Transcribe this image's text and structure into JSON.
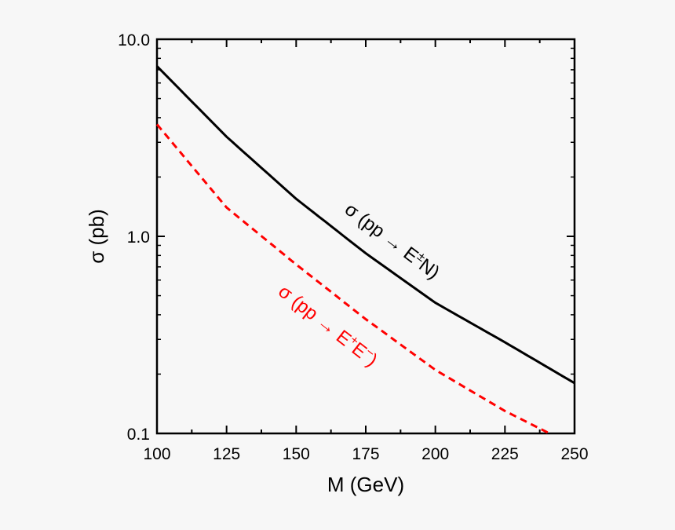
{
  "chart_data": {
    "type": "line",
    "xlabel": "M (GeV)",
    "ylabel": "σ (pb)",
    "xlim": [
      100,
      250
    ],
    "ylim": [
      0.1,
      10.0
    ],
    "yscale": "log",
    "grid": false,
    "x_ticks": [
      "100",
      "125",
      "150",
      "175",
      "200",
      "225",
      "250"
    ],
    "y_ticks": [
      "0.1",
      "1.0",
      "10.0"
    ],
    "series": [
      {
        "name": "σ (pp → E±N)",
        "color": "#000000",
        "style": "solid",
        "x": [
          100,
          125,
          150,
          175,
          200,
          225,
          250
        ],
        "y": [
          7.3,
          3.2,
          1.55,
          0.82,
          0.46,
          0.29,
          0.18
        ]
      },
      {
        "name": "σ (pp → E+E−)",
        "color": "#ff0000",
        "style": "dashed",
        "x": [
          100,
          125,
          150,
          175,
          200,
          225,
          241
        ],
        "y": [
          3.7,
          1.4,
          0.72,
          0.38,
          0.21,
          0.13,
          0.1
        ]
      }
    ],
    "annotations": [
      {
        "series": 0,
        "parts": [
          "σ (pp → E",
          "±",
          "N)"
        ]
      },
      {
        "series": 1,
        "parts": [
          "σ (pp → E",
          "+",
          "E",
          "−",
          ")"
        ]
      }
    ]
  }
}
